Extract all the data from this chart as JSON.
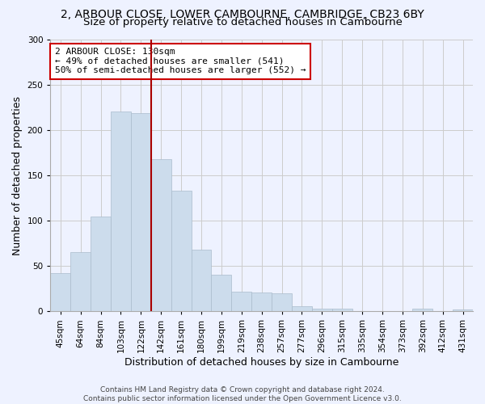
{
  "title_line1": "2, ARBOUR CLOSE, LOWER CAMBOURNE, CAMBRIDGE, CB23 6BY",
  "title_line2": "Size of property relative to detached houses in Cambourne",
  "xlabel": "Distribution of detached houses by size in Cambourne",
  "ylabel": "Number of detached properties",
  "footer_line1": "Contains HM Land Registry data © Crown copyright and database right 2024.",
  "footer_line2": "Contains public sector information licensed under the Open Government Licence v3.0.",
  "bar_labels": [
    "45sqm",
    "64sqm",
    "84sqm",
    "103sqm",
    "122sqm",
    "142sqm",
    "161sqm",
    "180sqm",
    "199sqm",
    "219sqm",
    "238sqm",
    "257sqm",
    "277sqm",
    "296sqm",
    "315sqm",
    "335sqm",
    "354sqm",
    "373sqm",
    "392sqm",
    "412sqm",
    "431sqm"
  ],
  "bar_values": [
    42,
    65,
    105,
    221,
    219,
    168,
    133,
    68,
    40,
    22,
    21,
    20,
    6,
    3,
    3,
    0,
    0,
    0,
    3,
    0,
    2
  ],
  "bar_color": "#ccdcec",
  "bar_edge_color": "#aabccc",
  "vline_index": 4.5,
  "vline_color": "#aa0000",
  "annotation_line1": "2 ARBOUR CLOSE: 130sqm",
  "annotation_line2": "← 49% of detached houses are smaller (541)",
  "annotation_line3": "50% of semi-detached houses are larger (552) →",
  "annotation_box_color": "white",
  "annotation_box_edge_color": "#cc0000",
  "ylim": [
    0,
    300
  ],
  "yticks": [
    0,
    50,
    100,
    150,
    200,
    250,
    300
  ],
  "grid_color": "#cccccc",
  "bg_color": "#eef2ff",
  "title_fontsize": 10,
  "subtitle_fontsize": 9.5,
  "ylabel_fontsize": 9,
  "xlabel_fontsize": 9,
  "tick_fontsize": 7.5,
  "annotation_fontsize": 8,
  "footer_fontsize": 6.5
}
